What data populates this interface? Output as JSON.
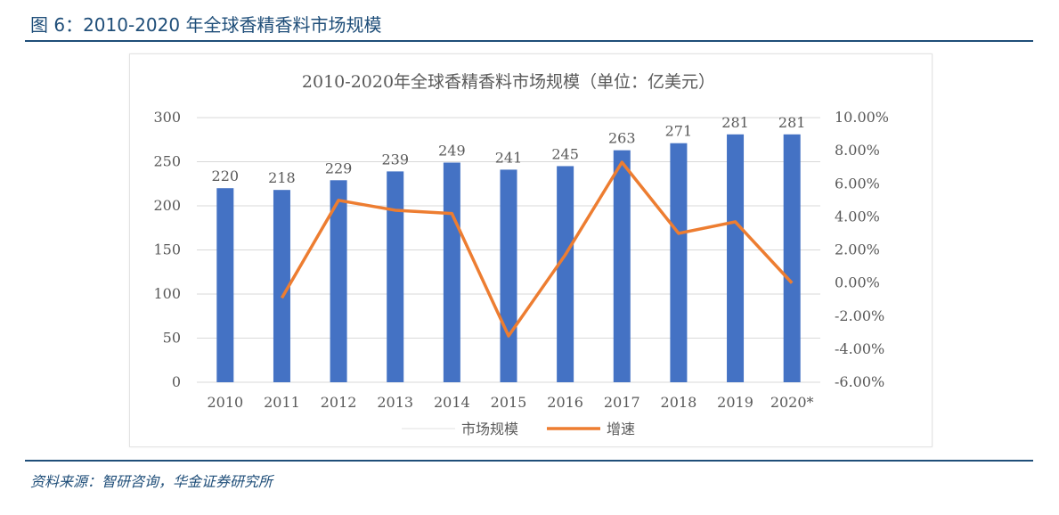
{
  "figure_title": "图 6：2010-2020 年全球香精香料市场规模",
  "source_text": "资料来源：智研咨询，华金证券研究所",
  "chart_data": {
    "type": "bar",
    "title": "2010-2020年全球香精香料市场规模（单位：亿美元）",
    "categories": [
      "2010",
      "2011",
      "2012",
      "2013",
      "2014",
      "2015",
      "2016",
      "2017",
      "2018",
      "2019",
      "2020*"
    ],
    "series": [
      {
        "name": "市场规模",
        "type": "bar",
        "axis": "left",
        "values": [
          220,
          218,
          229,
          239,
          249,
          241,
          245,
          263,
          271,
          281,
          281
        ]
      },
      {
        "name": "增速",
        "type": "line",
        "axis": "right",
        "values": [
          null,
          -0.9,
          5.0,
          4.4,
          4.2,
          -3.2,
          1.7,
          7.3,
          3.0,
          3.7,
          0.0
        ]
      }
    ],
    "y_left": {
      "min": 0,
      "max": 300,
      "ticks": [
        "0",
        "50",
        "100",
        "150",
        "200",
        "250",
        "300"
      ]
    },
    "y_right": {
      "min": -6,
      "max": 10,
      "ticks": [
        "-6.00%",
        "-4.00%",
        "-2.00%",
        "0.00%",
        "2.00%",
        "4.00%",
        "6.00%",
        "8.00%",
        "10.00%"
      ]
    },
    "grid": true,
    "legend_position": "bottom",
    "colors": {
      "bar": "#4472c4",
      "line": "#ed7d31",
      "grid": "#d9d9d9",
      "text": "#595959"
    }
  }
}
